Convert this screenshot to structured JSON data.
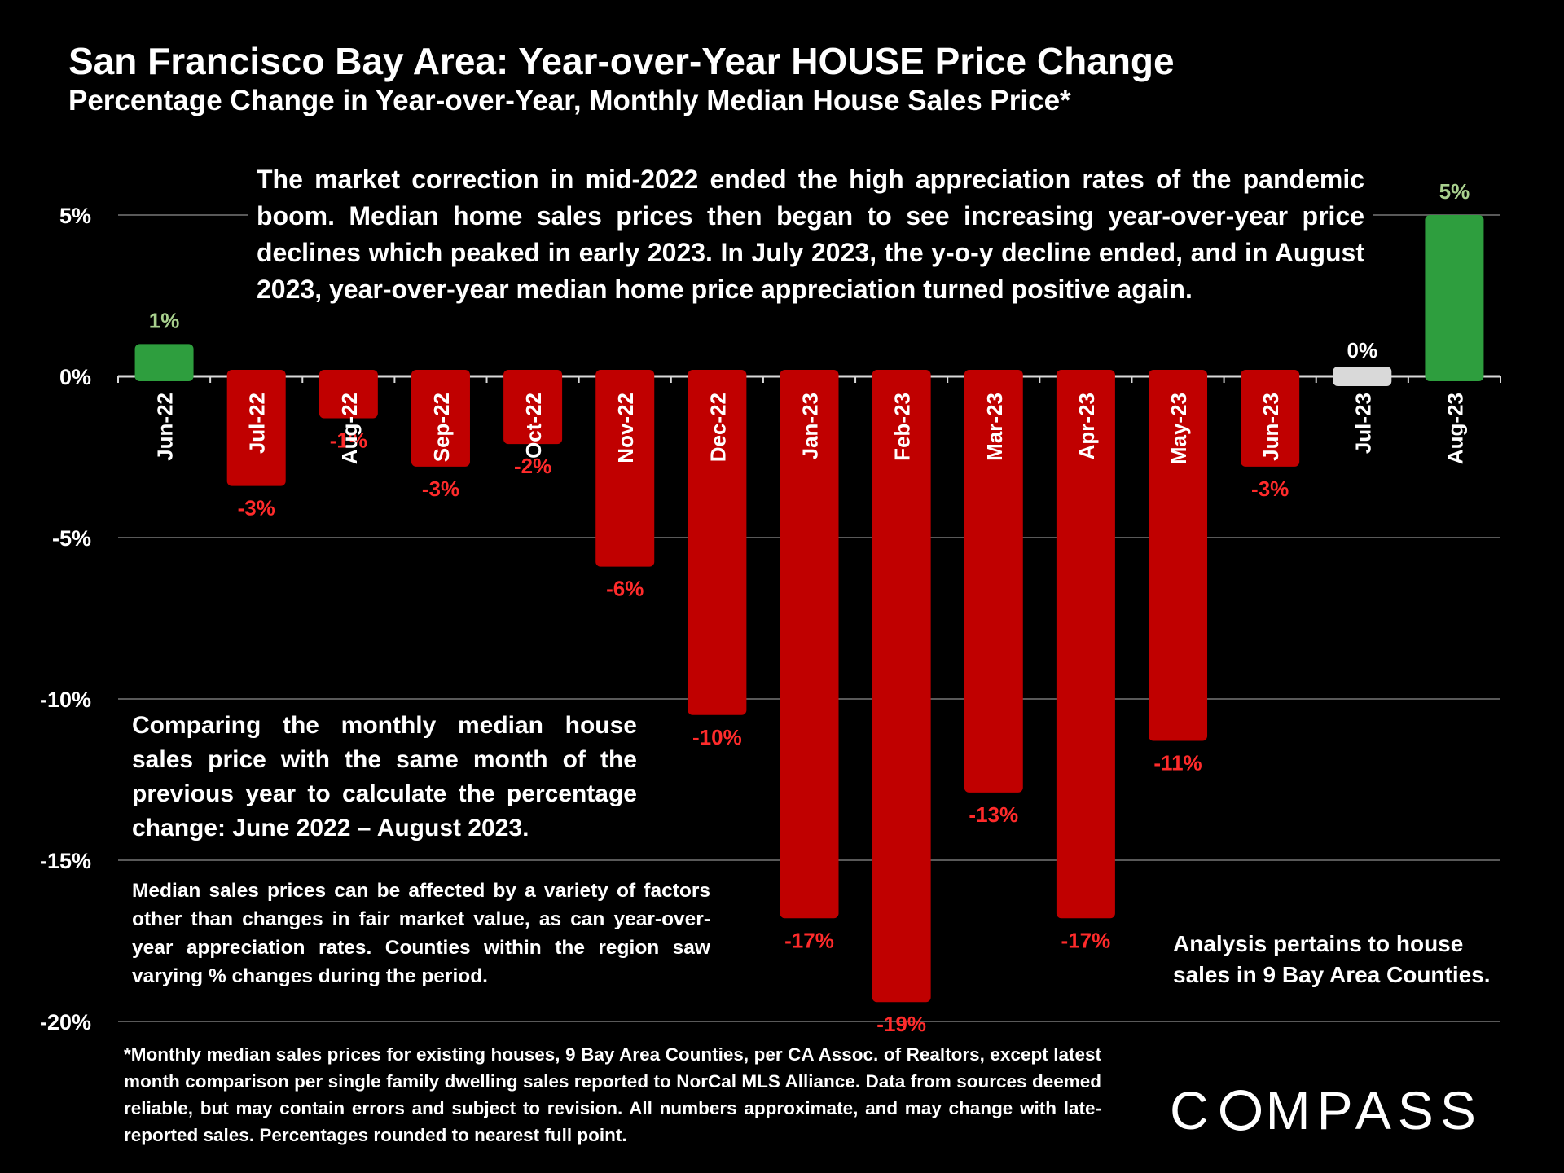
{
  "title": "San Francisco Bay Area: Year-over-Year HOUSE Price Change",
  "subtitle": "Percentage Change in Year-over-Year, Monthly Median House Sales Price*",
  "annotations": {
    "top": "The market correction in mid-2022 ended the high appreciation rates of the pandemic boom.  Median home sales prices then began to see increasing year-over-year price declines which peaked in early 2023. In July 2023, the y-o-y decline ended, and in August 2023, year-over-year median home price appreciation turned positive again.",
    "compare": "Comparing the monthly median house sales price with the same month of the previous year to calculate the percentage change: June 2022 – August 2023.",
    "factors": "Median sales prices can be affected by a variety of factors other than changes in fair market value, as can year-over-year appreciation rates. Counties within the region saw varying % changes during the period.",
    "analysis": "Analysis pertains to house sales in 9 Bay Area Counties."
  },
  "footnote": "*Monthly median sales prices for existing houses, 9 Bay Area Counties, per CA Assoc. of Realtors, except latest month comparison per single family dwelling sales reported to NorCal MLS Alliance. Data from sources deemed reliable, but may contain errors and subject to revision. All numbers approximate, and may change with late-reported sales. Percentages rounded to nearest full point.",
  "logo": {
    "left": "C",
    "right": "MPASS"
  },
  "colors": {
    "positive": "#2e9e3e",
    "negative": "#c00000",
    "neutral": "#d9d9d9",
    "positive_label": "#a9d18e",
    "negative_label": "#ff2b2b",
    "neutral_label": "#ffffff",
    "gridline": "#595959"
  },
  "chart_data": {
    "type": "bar",
    "categories": [
      "Jun-22",
      "Jul-22",
      "Aug-22",
      "Sep-22",
      "Oct-22",
      "Nov-22",
      "Dec-22",
      "Jan-23",
      "Feb-23",
      "Mar-23",
      "Apr-23",
      "May-23",
      "Jun-23",
      "Jul-23",
      "Aug-23"
    ],
    "values": [
      1.0,
      -3.4,
      -1.3,
      -2.8,
      -2.1,
      -5.9,
      -10.5,
      -16.8,
      -19.4,
      -12.9,
      -16.8,
      -11.3,
      -2.8,
      0.0,
      5.0
    ],
    "labels": [
      "1%",
      "-3%",
      "-1%",
      "-3%",
      "-2%",
      "-6%",
      "-10%",
      "-17%",
      "-19%",
      "-13%",
      "-17%",
      "-11%",
      "-3%",
      "0%",
      "5%"
    ],
    "yticks": [
      5,
      0,
      -5,
      -10,
      -15,
      -20
    ],
    "ytick_labels": [
      "5%",
      "0%",
      "-5%",
      "-10%",
      "-15%",
      "-20%"
    ],
    "ylim": [
      -20,
      5
    ],
    "title": "San Francisco Bay Area: Year-over-Year HOUSE Price Change",
    "xlabel": "",
    "ylabel": "",
    "grid": true
  }
}
